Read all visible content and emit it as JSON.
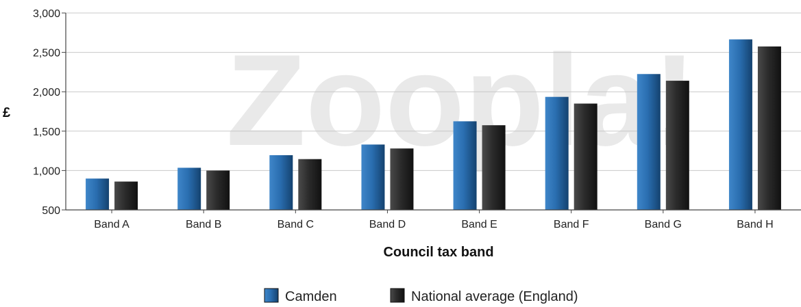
{
  "watermark": "Zoopla!",
  "chart_data": {
    "type": "bar",
    "title": "",
    "xlabel": "Council tax band",
    "ylabel": "£",
    "ylim": [
      500,
      3000
    ],
    "yticks": [
      500,
      1000,
      1500,
      2000,
      2500,
      3000
    ],
    "ytick_labels": [
      "500",
      "1,000",
      "1,500",
      "2,000",
      "2,500",
      "3,000"
    ],
    "grid": true,
    "legend_position": "bottom",
    "categories": [
      "Band A",
      "Band B",
      "Band C",
      "Band D",
      "Band E",
      "Band F",
      "Band G",
      "Band H"
    ],
    "series": [
      {
        "name": "Camden",
        "color": "#2a6eb0",
        "values": [
          898,
          1035,
          1195,
          1330,
          1625,
          1935,
          2225,
          2665
        ]
      },
      {
        "name": "National average (England)",
        "color": "#2b2b2b",
        "values": [
          860,
          1000,
          1145,
          1280,
          1575,
          1850,
          2140,
          2575
        ]
      }
    ]
  }
}
